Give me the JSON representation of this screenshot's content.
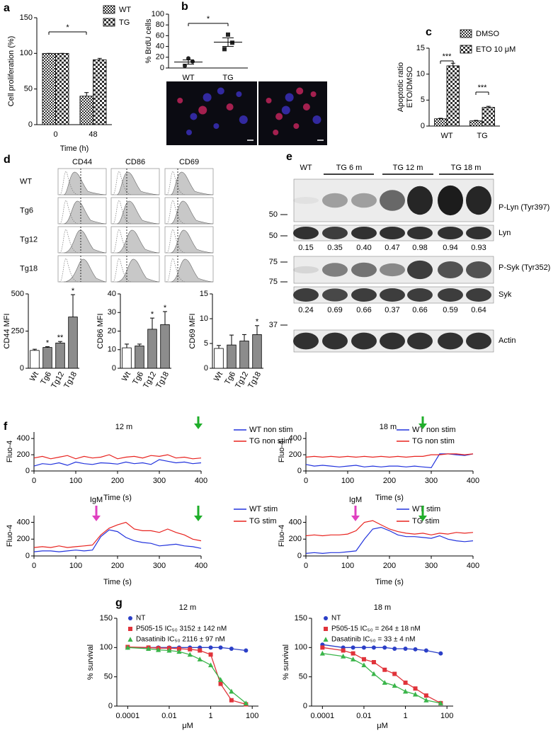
{
  "chart_data": [
    {
      "type": "bar",
      "panel": "a",
      "ylabel": "Cell proliferation (%)",
      "xlabel": "Time (h)",
      "categories": [
        "0",
        "48"
      ],
      "series": [
        {
          "name": "WT",
          "color": "#333333",
          "pattern": "fine",
          "values": [
            100,
            40
          ],
          "errors": [
            0,
            5
          ]
        },
        {
          "name": "TG",
          "color": "#333333",
          "pattern": "coarse",
          "values": [
            100,
            91
          ],
          "errors": [
            0,
            2
          ]
        }
      ],
      "ylim": [
        0,
        150
      ],
      "yticks": [
        0,
        50,
        100,
        150
      ],
      "annotations": [
        "*"
      ]
    },
    {
      "type": "dot",
      "panel": "b",
      "ylabel": "% BrdU cells",
      "categories": [
        "WT",
        "TG"
      ],
      "markers": [
        "circle",
        "square"
      ],
      "values": [
        [
          18,
          12,
          4
        ],
        [
          62,
          47,
          35
        ]
      ],
      "means": [
        11,
        48
      ],
      "errors": [
        4,
        8
      ],
      "ylim": [
        0,
        100
      ],
      "yticks": [
        0,
        20,
        40,
        60,
        80,
        100
      ],
      "annotations": [
        "*"
      ]
    },
    {
      "type": "bar",
      "panel": "c",
      "ylabel": [
        "Apoptotic ratio",
        "ETO/DMSO"
      ],
      "categories": [
        "WT",
        "TG"
      ],
      "series": [
        {
          "name": "DMSO",
          "color": "#333333",
          "pattern": "fine",
          "values": [
            1.4,
            1.0
          ],
          "errors": [
            0.1,
            0.1
          ]
        },
        {
          "name": "ETO 10 μM",
          "color": "#333333",
          "pattern": "coarse",
          "values": [
            11.6,
            3.6
          ],
          "errors": [
            0.5,
            0.2
          ]
        }
      ],
      "ylim": [
        0,
        15
      ],
      "yticks": [
        0,
        5,
        10,
        15
      ],
      "annotations": [
        "***",
        "***"
      ]
    },
    {
      "type": "bar",
      "ylabel": "CD44 MFI",
      "categories": [
        "Wt",
        "Tg6",
        "Tg12",
        "Tg18"
      ],
      "values": [
        120,
        140,
        170,
        345
      ],
      "errors": [
        8,
        5,
        10,
        150
      ],
      "colors": [
        "#ffffff",
        "#8c8c8c",
        "#8c8c8c",
        "#8c8c8c"
      ],
      "ylim": [
        0,
        500
      ],
      "yticks": [
        0,
        250,
        500
      ],
      "annotations": [
        "*",
        "**",
        "*"
      ]
    },
    {
      "type": "bar",
      "ylabel": "CD86 MFI",
      "categories": [
        "Wt",
        "Tg6",
        "Tg12",
        "Tg18"
      ],
      "values": [
        11,
        12,
        21,
        23.5
      ],
      "errors": [
        2,
        1,
        6,
        7
      ],
      "colors": [
        "#ffffff",
        "#8c8c8c",
        "#8c8c8c",
        "#8c8c8c"
      ],
      "ylim": [
        0,
        40
      ],
      "yticks": [
        0,
        10,
        20,
        30,
        40
      ],
      "annotations": [
        "*",
        "*"
      ]
    },
    {
      "type": "bar",
      "ylabel": "CD69 MFI",
      "categories": [
        "Wt",
        "Tg6",
        "Tg12",
        "Tg18"
      ],
      "values": [
        4,
        4.7,
        5.5,
        6.8
      ],
      "errors": [
        0.6,
        2,
        1.3,
        1.8
      ],
      "colors": [
        "#ffffff",
        "#8c8c8c",
        "#8c8c8c",
        "#8c8c8c"
      ],
      "ylim": [
        0,
        15
      ],
      "yticks": [
        0,
        5,
        10,
        15
      ],
      "annotations": [
        "*"
      ]
    },
    {
      "type": "line",
      "panel": "f",
      "title": "12 m",
      "ylabel": "Fluo-4",
      "xlabel": "Time (s)",
      "x": [
        0,
        20,
        40,
        60,
        80,
        100,
        120,
        140,
        160,
        180,
        200,
        220,
        240,
        260,
        280,
        300,
        320,
        340,
        360,
        380,
        400
      ],
      "series": [
        {
          "name": "WT non stim",
          "color": "#2233dd",
          "values": [
            60,
            90,
            80,
            100,
            70,
            110,
            90,
            80,
            100,
            95,
            85,
            110,
            90,
            100,
            80,
            140,
            120,
            100,
            110,
            90,
            100
          ]
        },
        {
          "name": "TG non stim",
          "color": "#e8231f",
          "values": [
            160,
            180,
            150,
            170,
            190,
            150,
            180,
            160,
            170,
            200,
            150,
            170,
            180,
            160,
            190,
            180,
            200,
            160,
            170,
            150,
            160
          ]
        }
      ],
      "xlim": [
        0,
        400
      ],
      "xticks": [
        0,
        100,
        200,
        300,
        400
      ],
      "ylim": [
        0,
        480
      ],
      "yticks": [
        0,
        200,
        400
      ]
    },
    {
      "type": "line",
      "title": "18 m",
      "ylabel": "Fluo-4",
      "xlabel": "Time (s)",
      "x": [
        0,
        20,
        40,
        60,
        80,
        100,
        120,
        140,
        160,
        180,
        200,
        220,
        240,
        260,
        280,
        300,
        320,
        340,
        360,
        380,
        400
      ],
      "series": [
        {
          "name": "WT non stim",
          "color": "#2233dd",
          "values": [
            80,
            60,
            70,
            60,
            50,
            60,
            70,
            50,
            60,
            50,
            60,
            60,
            50,
            60,
            50,
            40,
            210,
            210,
            200,
            190,
            210
          ]
        },
        {
          "name": "TG non stim",
          "color": "#e8231f",
          "values": [
            170,
            180,
            170,
            180,
            170,
            180,
            170,
            180,
            170,
            180,
            170,
            180,
            170,
            180,
            180,
            200,
            200,
            210,
            210,
            200,
            210
          ]
        }
      ],
      "xlim": [
        0,
        400
      ],
      "xticks": [
        0,
        100,
        200,
        300,
        400
      ],
      "ylim": [
        0,
        480
      ],
      "yticks": [
        0,
        200,
        400
      ]
    },
    {
      "type": "line",
      "ylabel": "Fluo-4",
      "xlabel": "Time (s)",
      "annotations": [
        "IgM"
      ],
      "x": [
        0,
        20,
        40,
        60,
        80,
        100,
        120,
        140,
        160,
        180,
        200,
        220,
        240,
        260,
        280,
        300,
        320,
        340,
        360,
        380,
        400
      ],
      "series": [
        {
          "name": "WT stim",
          "color": "#2233dd",
          "values": [
            50,
            60,
            60,
            50,
            60,
            70,
            60,
            70,
            230,
            310,
            290,
            220,
            180,
            160,
            150,
            120,
            130,
            140,
            120,
            110,
            90
          ]
        },
        {
          "name": "TG stim",
          "color": "#e8231f",
          "values": [
            100,
            110,
            100,
            120,
            100,
            110,
            120,
            130,
            250,
            330,
            370,
            400,
            320,
            300,
            300,
            280,
            320,
            280,
            250,
            200,
            180
          ]
        }
      ],
      "xlim": [
        0,
        400
      ],
      "xticks": [
        0,
        100,
        200,
        300,
        400
      ],
      "ylim": [
        0,
        480
      ],
      "yticks": [
        0,
        200,
        400
      ]
    },
    {
      "type": "line",
      "ylabel": "Fluo-4",
      "xlabel": "Time (s)",
      "annotations": [
        "IgM"
      ],
      "x": [
        0,
        20,
        40,
        60,
        80,
        100,
        120,
        140,
        160,
        180,
        200,
        220,
        240,
        260,
        280,
        300,
        320,
        340,
        360,
        380,
        400
      ],
      "series": [
        {
          "name": "WT stim",
          "color": "#2233dd",
          "values": [
            30,
            40,
            30,
            40,
            40,
            50,
            60,
            200,
            320,
            340,
            300,
            250,
            230,
            230,
            220,
            210,
            240,
            200,
            180,
            170,
            180
          ]
        },
        {
          "name": "TG stim",
          "color": "#e8231f",
          "values": [
            240,
            250,
            240,
            250,
            250,
            260,
            300,
            400,
            420,
            370,
            320,
            290,
            270,
            260,
            270,
            250,
            270,
            260,
            280,
            270,
            280
          ]
        }
      ],
      "xlim": [
        0,
        400
      ],
      "xticks": [
        0,
        100,
        200,
        300,
        400
      ],
      "ylim": [
        0,
        480
      ],
      "yticks": [
        0,
        200,
        400
      ]
    },
    {
      "type": "scatter",
      "panel": "g",
      "title": "12 m",
      "ylabel": "% survival",
      "xlabel": "μM",
      "xlog": true,
      "x": [
        0.0001,
        0.001,
        0.003,
        0.01,
        0.03,
        0.1,
        0.3,
        1,
        3,
        10,
        50
      ],
      "series": [
        {
          "name": "NT",
          "color": "#2b3fc7",
          "marker": "circle",
          "values": [
            100,
            100,
            100,
            100,
            100,
            100,
            100,
            100,
            100,
            98,
            95
          ]
        },
        {
          "name": "P505-15 IC₅₀ 3152 ± 142 nM",
          "color": "#e0333a",
          "marker": "square",
          "values": [
            101,
            100,
            99,
            99,
            98,
            97,
            95,
            88,
            38,
            10,
            3
          ]
        },
        {
          "name": "Dasatinib IC₅₀ 2116 ± 97 nM",
          "color": "#3ab54a",
          "marker": "triangle",
          "values": [
            100,
            98,
            96,
            95,
            93,
            88,
            80,
            70,
            45,
            25,
            5
          ]
        }
      ],
      "xlim": [
        3e-05,
        200
      ],
      "xticks": [
        0.0001,
        0.01,
        1,
        100
      ],
      "ylim": [
        0,
        150
      ],
      "yticks": [
        0,
        50,
        100,
        150
      ]
    },
    {
      "type": "scatter",
      "title": "18 m",
      "ylabel": "% survival",
      "xlabel": "μM",
      "xlog": true,
      "x": [
        0.0001,
        0.001,
        0.003,
        0.01,
        0.03,
        0.1,
        0.3,
        1,
        3,
        10,
        50
      ],
      "series": [
        {
          "name": "NT",
          "color": "#2b3fc7",
          "marker": "circle",
          "values": [
            105,
            100,
            100,
            100,
            100,
            100,
            98,
            98,
            97,
            95,
            90
          ]
        },
        {
          "name": "P505-15 IC₅₀ = 264 ± 18 nM",
          "color": "#e0333a",
          "marker": "square",
          "values": [
            100,
            95,
            90,
            80,
            75,
            62,
            55,
            40,
            30,
            18,
            5
          ]
        },
        {
          "name": "Dasatinib IC₅₀ = 33 ± 4 nM",
          "color": "#3ab54a",
          "marker": "triangle",
          "values": [
            90,
            85,
            80,
            70,
            55,
            40,
            35,
            25,
            20,
            10,
            5
          ]
        }
      ],
      "xlim": [
        3e-05,
        200
      ],
      "xticks": [
        0.0001,
        0.01,
        1,
        100
      ],
      "ylim": [
        0,
        150
      ],
      "yticks": [
        0,
        50,
        100,
        150
      ]
    }
  ],
  "flow": {
    "panel": "d",
    "columns": [
      "CD44",
      "CD86",
      "CD69"
    ],
    "rows": [
      "WT",
      "Tg6",
      "Tg12",
      "Tg18"
    ]
  },
  "blot": {
    "panel": "e",
    "groups": [
      "WT",
      "TG 6 m",
      "TG 12 m",
      "TG 18 m"
    ],
    "strips": [
      {
        "label": "P-Lyn (Tyr397)",
        "marker": "50"
      },
      {
        "label": "Lyn",
        "marker": "50"
      },
      {
        "label": "P-Syk (Tyr352)",
        "marker": "75"
      },
      {
        "label": "Syk",
        "marker": "75"
      },
      {
        "label": "Actin",
        "marker": "37"
      }
    ],
    "ratios": [
      [
        "0.15",
        "0.35",
        "0.40",
        "0.47",
        "0.98",
        "0.94",
        "0.93"
      ],
      [
        "0.24",
        "0.69",
        "0.66",
        "0.37",
        "0.66",
        "0.59",
        "0.64"
      ]
    ]
  }
}
